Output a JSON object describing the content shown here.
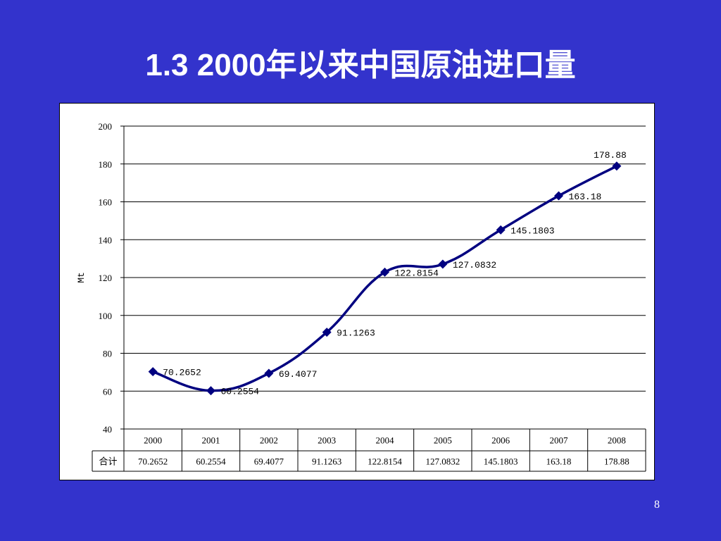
{
  "slide": {
    "title": "1.3 2000年以来中国原油进口量",
    "page_number": "8"
  },
  "colors": {
    "background": "#3333cc",
    "series_line": "#000080",
    "plot_background": "#ffffff",
    "gridline": "#000000"
  },
  "chart_data": {
    "type": "line",
    "title": "",
    "xlabel": "",
    "ylabel": "Mt",
    "ylim": [
      40,
      200
    ],
    "yticks": [
      40,
      60,
      80,
      100,
      120,
      140,
      160,
      180,
      200
    ],
    "grid": true,
    "legend": "none",
    "categories": [
      "2000",
      "2001",
      "2002",
      "2003",
      "2004",
      "2005",
      "2006",
      "2007",
      "2008"
    ],
    "series": [
      {
        "values": [
          70.2652,
          60.2554,
          69.4077,
          91.1263,
          122.8154,
          127.0832,
          145.1803,
          163.18,
          178.88
        ],
        "labels": [
          "70.2652",
          "60.2554",
          "69.4077",
          "91.1263",
          "122.8154",
          "127.0832",
          "145.1803",
          "163.18",
          "178.88"
        ]
      }
    ],
    "data_table": {
      "row_header": "合计",
      "cells": [
        "70.2652",
        "60.2554",
        "69.4077",
        "91.1263",
        "122.8154",
        "127.0832",
        "145.1803",
        "163.18",
        "178.88"
      ]
    }
  }
}
